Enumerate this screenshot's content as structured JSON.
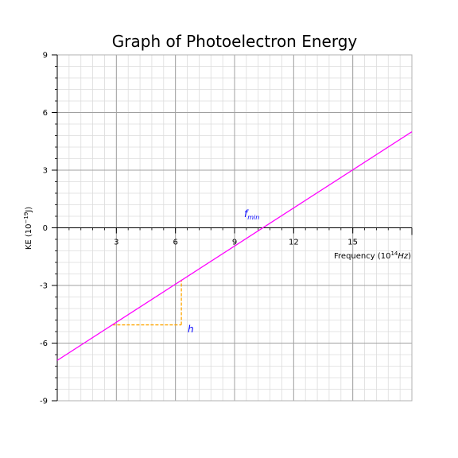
{
  "chart_data": {
    "type": "line",
    "title": "Graph of Photoelectron Energy",
    "xlabel_main": "Frequency (10",
    "xlabel_exp": "14",
    "xlabel_unit": "Hz",
    "xlabel_close": ")",
    "ylabel_main": "KE (10",
    "ylabel_exp": "−19",
    "ylabel_unit": "J)",
    "xlim": [
      0,
      18
    ],
    "ylim": [
      -9,
      9
    ],
    "x_ticks": [
      3,
      6,
      9,
      12,
      15
    ],
    "x_tick_labels": [
      "3",
      "6",
      "9",
      "12",
      "15"
    ],
    "y_ticks": [
      -9,
      -6,
      -3,
      0,
      3,
      6,
      9
    ],
    "y_tick_labels": [
      "-9",
      "-6",
      "-3",
      "0",
      "3",
      "6",
      "9"
    ],
    "grid": "major and minor",
    "series": [
      {
        "x": [
          0,
          18
        ],
        "y": [
          -6.9,
          5.0
        ],
        "color": "#ff00ff"
      }
    ],
    "slope_triangle": {
      "points": [
        [
          2.8,
          -5.05
        ],
        [
          6.3,
          -5.05
        ],
        [
          6.3,
          -2.7
        ]
      ],
      "color": "#ffa500",
      "label": "h"
    },
    "intercept_label": {
      "main": "f",
      "sub": "min"
    },
    "colors": {
      "major_grid": "#a0a0a0",
      "minor_grid": "#dcdcdc",
      "annotation": "#0000ff"
    }
  }
}
